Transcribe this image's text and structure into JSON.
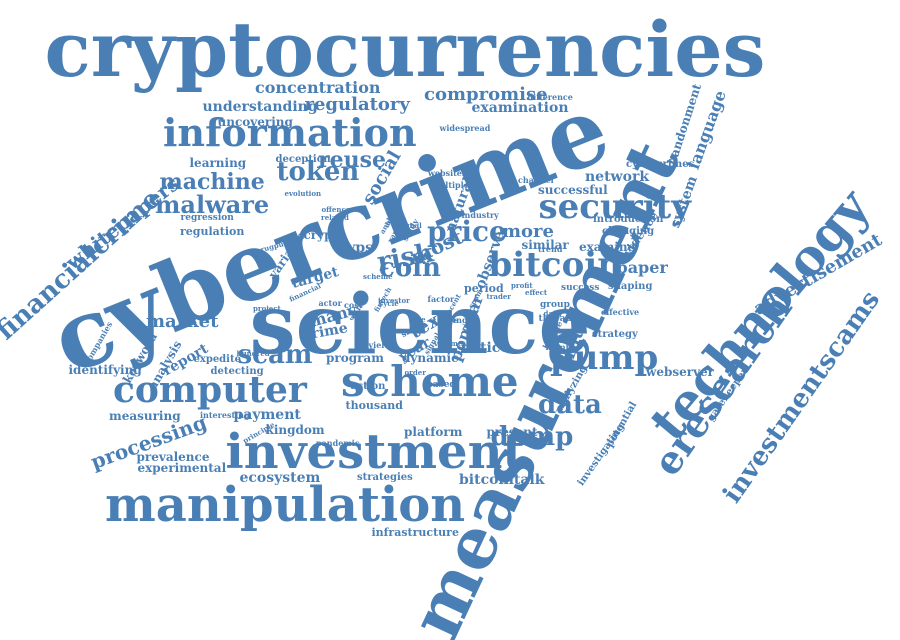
{
  "theme": {
    "word_color": "#4a7fb5",
    "background": "#ffffff"
  },
  "words": [
    "cryptocurrencies",
    "cybercrime",
    "science",
    "measurement",
    "scheme",
    "manipulation",
    "investment",
    "information",
    "technology",
    "computer",
    "bitcoin",
    "security",
    "eresearch",
    "investmentscams",
    "financialcrime",
    "whitepapers",
    "advertisement",
    "pump",
    "data",
    "dump",
    "risk",
    "price",
    "coin",
    "token",
    "malware",
    "machine",
    "reuse",
    "scam",
    "processing",
    "market",
    "concentration",
    "compromise",
    "regulatory",
    "understanding",
    "examination",
    "uncovering",
    "network",
    "paper",
    "language",
    "abandonment",
    "system",
    "fraud",
    "report",
    "analysis",
    "keyword",
    "identifying",
    "measuring",
    "payment",
    "kingdom",
    "platform",
    "present",
    "ecosystem",
    "bitcointalk",
    "infrastructure",
    "strategies",
    "prevalence",
    "experimental",
    "learning",
    "deception",
    "regulation",
    "regression",
    "social",
    "natural",
    "many",
    "crime",
    "program",
    "notice",
    "dynamic",
    "text",
    "year",
    "popular",
    "target",
    "hyps",
    "crypto",
    "more",
    "most",
    "evidence",
    "examine",
    "similar",
    "changing",
    "introduction",
    "successful",
    "cybercrimes",
    "websites",
    "multiple",
    "industry",
    "channel",
    "study",
    "widespread",
    "difference",
    "thousand",
    "action",
    "based",
    "yield",
    "cost",
    "value",
    "webserver",
    "gatekeeper",
    "investigating",
    "potential",
    "analyzing",
    "bubble",
    "strategy",
    "effective",
    "thread",
    "group",
    "success",
    "shaping",
    "interesting",
    "principle",
    "pandemic",
    "detecting",
    "expedite",
    "companies",
    "hundred",
    "actor",
    "short",
    "number",
    "signal",
    "evolution",
    "offence",
    "related",
    "variable",
    "rugpulls",
    "financial",
    "project",
    "observe",
    "period",
    "factor",
    "rate",
    "fintech",
    "type",
    "sale",
    "trend",
    "volume",
    "profit",
    "effect",
    "event",
    "cycle",
    "spam",
    "trader",
    "scheme",
    "order",
    "signal",
    "deeper",
    "analyze",
    "various",
    "investor",
    "recent",
    "daily",
    "shaping"
  ]
}
